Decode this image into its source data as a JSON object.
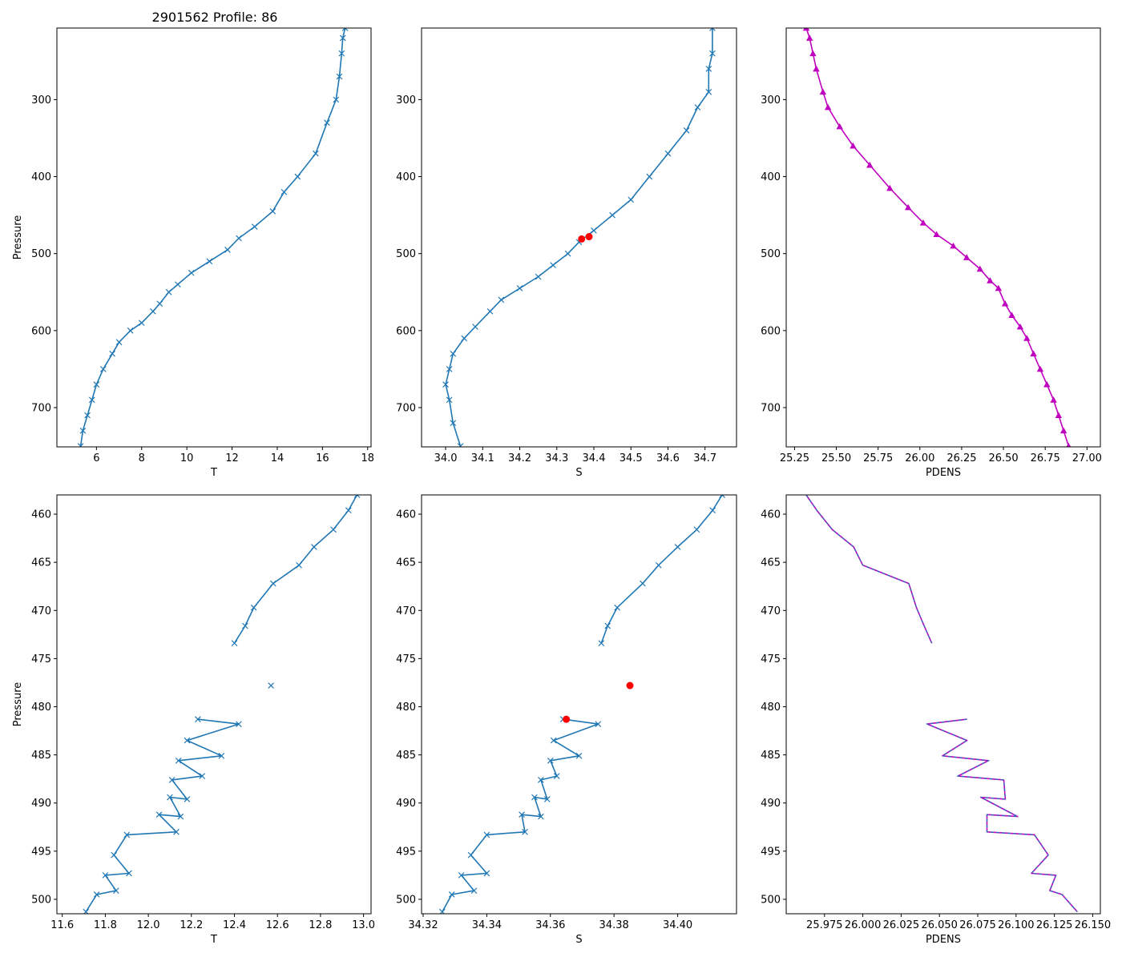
{
  "figure_title": "2901562 Profile: 86",
  "colors": {
    "line": "#1f77b4",
    "pdens": "#bf00bf",
    "pdens_dash": "#1f77b4",
    "qc_flag": "#ff0000",
    "axis": "#000000"
  },
  "chart_data": [
    {
      "id": "top-T",
      "type": "line",
      "xlabel": "T",
      "ylabel": "Pressure",
      "title": "2901562 Profile: 86",
      "xlim": [
        4.25,
        18.15
      ],
      "ylim": [
        751,
        207
      ],
      "y_inverted": true,
      "xticks": [
        "6",
        "8",
        "10",
        "12",
        "14",
        "16",
        "18"
      ],
      "xtick_values": [
        6,
        8,
        10,
        12,
        14,
        16,
        18
      ],
      "yticks": [
        "300",
        "400",
        "500",
        "600",
        "700"
      ],
      "ytick_values": [
        300,
        400,
        500,
        600,
        700
      ],
      "marker": "x",
      "series_color": "line",
      "series": [
        {
          "name": "T",
          "x": [
            5.3,
            5.4,
            5.6,
            5.8,
            6.0,
            6.3,
            6.7,
            7.0,
            7.5,
            8.0,
            8.5,
            8.8,
            9.2,
            9.6,
            10.2,
            11.0,
            11.8,
            12.3,
            13.0,
            13.8,
            14.3,
            14.9,
            15.7,
            16.2,
            16.6,
            16.75,
            16.85,
            16.9,
            17.0
          ],
          "y": [
            750,
            730,
            710,
            690,
            670,
            650,
            630,
            615,
            600,
            590,
            575,
            565,
            550,
            540,
            525,
            510,
            495,
            480,
            465,
            445,
            420,
            400,
            370,
            330,
            300,
            270,
            240,
            220,
            207
          ]
        }
      ]
    },
    {
      "id": "top-S",
      "type": "line",
      "xlabel": "S",
      "ylabel": "",
      "xlim": [
        33.935,
        34.785
      ],
      "ylim": [
        751,
        207
      ],
      "y_inverted": true,
      "xticks": [
        "34.0",
        "34.1",
        "34.2",
        "34.3",
        "34.4",
        "34.5",
        "34.6",
        "34.7"
      ],
      "xtick_values": [
        34.0,
        34.1,
        34.2,
        34.3,
        34.4,
        34.5,
        34.6,
        34.7
      ],
      "yticks": [
        "300",
        "400",
        "500",
        "600",
        "700"
      ],
      "ytick_values": [
        300,
        400,
        500,
        600,
        700
      ],
      "marker": "x",
      "series_color": "line",
      "series": [
        {
          "name": "S",
          "x": [
            34.04,
            34.02,
            34.01,
            34.0,
            34.01,
            34.02,
            34.05,
            34.08,
            34.12,
            34.15,
            34.2,
            34.25,
            34.29,
            34.33,
            34.36,
            34.4,
            34.45,
            34.5,
            34.55,
            34.6,
            34.65,
            34.68,
            34.71,
            34.71,
            34.72,
            34.72
          ],
          "y": [
            750,
            720,
            690,
            670,
            650,
            630,
            610,
            595,
            575,
            560,
            545,
            530,
            515,
            500,
            485,
            470,
            450,
            430,
            400,
            370,
            340,
            310,
            290,
            260,
            240,
            207
          ]
        }
      ],
      "flags": {
        "x": [
          34.367,
          34.387
        ],
        "y": [
          481,
          478
        ]
      }
    },
    {
      "id": "top-PDENS",
      "type": "line",
      "xlabel": "PDENS",
      "ylabel": "",
      "xlim": [
        25.2,
        27.08
      ],
      "ylim": [
        751,
        207
      ],
      "y_inverted": true,
      "xticks": [
        "25.25",
        "25.50",
        "25.75",
        "26.00",
        "26.25",
        "26.50",
        "26.75",
        "27.00"
      ],
      "xtick_values": [
        25.25,
        25.5,
        25.75,
        26.0,
        26.25,
        26.5,
        26.75,
        27.0
      ],
      "yticks": [
        "300",
        "400",
        "500",
        "600",
        "700"
      ],
      "ytick_values": [
        300,
        400,
        500,
        600,
        700
      ],
      "marker": "triangle",
      "series_color": "pdens",
      "series": [
        {
          "name": "PDENS",
          "x": [
            26.89,
            26.86,
            26.83,
            26.8,
            26.76,
            26.72,
            26.68,
            26.64,
            26.6,
            26.55,
            26.51,
            26.47,
            26.42,
            26.36,
            26.28,
            26.2,
            26.1,
            26.02,
            25.93,
            25.82,
            25.7,
            25.6,
            25.52,
            25.45,
            25.42,
            25.38,
            25.36,
            25.34,
            25.32
          ],
          "y": [
            750,
            730,
            710,
            690,
            670,
            650,
            630,
            610,
            595,
            580,
            565,
            545,
            535,
            520,
            505,
            490,
            475,
            460,
            440,
            415,
            385,
            360,
            335,
            310,
            290,
            260,
            240,
            220,
            207
          ]
        }
      ]
    },
    {
      "id": "bottom-T",
      "type": "line",
      "xlabel": "T",
      "ylabel": "Pressure",
      "xlim": [
        11.575,
        13.035
      ],
      "ylim": [
        501.5,
        458.0
      ],
      "y_inverted": true,
      "xticks": [
        "11.6",
        "11.8",
        "12.0",
        "12.2",
        "12.4",
        "12.6",
        "12.8",
        "13.0"
      ],
      "xtick_values": [
        11.6,
        11.8,
        12.0,
        12.2,
        12.4,
        12.6,
        12.8,
        13.0
      ],
      "yticks": [
        "460",
        "465",
        "470",
        "475",
        "480",
        "485",
        "490",
        "495",
        "500"
      ],
      "ytick_values": [
        460,
        465,
        470,
        475,
        480,
        485,
        490,
        495,
        500
      ],
      "marker": "x",
      "series_color": "line",
      "segments": [
        {
          "x": [
            12.97,
            12.93,
            12.86,
            12.77,
            12.7,
            12.58,
            12.49,
            12.45,
            12.4
          ],
          "y": [
            458.0,
            459.6,
            461.6,
            463.4,
            465.3,
            467.2,
            469.7,
            471.6,
            473.4
          ]
        },
        {
          "x": [
            12.57
          ],
          "y": [
            477.8
          ]
        },
        {
          "x": [
            12.23,
            12.42,
            12.18,
            12.34,
            12.14,
            12.25,
            12.11,
            12.18,
            12.1,
            12.15,
            12.05,
            12.13,
            11.9,
            11.84,
            11.91,
            11.8,
            11.85,
            11.76,
            11.71
          ],
          "y": [
            481.3,
            481.8,
            483.5,
            485.1,
            485.6,
            487.2,
            487.6,
            489.6,
            489.4,
            491.4,
            491.2,
            493.0,
            493.3,
            495.4,
            497.3,
            497.5,
            499.1,
            499.5,
            501.3
          ]
        }
      ]
    },
    {
      "id": "bottom-S",
      "type": "line",
      "xlabel": "S",
      "ylabel": "",
      "xlim": [
        34.3195,
        34.4185
      ],
      "ylim": [
        501.5,
        458.0
      ],
      "y_inverted": true,
      "xticks": [
        "34.32",
        "34.34",
        "34.36",
        "34.38",
        "34.40"
      ],
      "xtick_values": [
        34.32,
        34.34,
        34.36,
        34.38,
        34.4
      ],
      "yticks": [
        "460",
        "465",
        "470",
        "475",
        "480",
        "485",
        "490",
        "495",
        "500"
      ],
      "ytick_values": [
        460,
        465,
        470,
        475,
        480,
        485,
        490,
        495,
        500
      ],
      "marker": "x",
      "series_color": "line",
      "segments": [
        {
          "x": [
            34.414,
            34.411,
            34.406,
            34.4,
            34.394,
            34.389,
            34.381,
            34.378,
            34.376
          ],
          "y": [
            458.0,
            459.6,
            461.6,
            463.4,
            465.3,
            467.2,
            469.7,
            471.6,
            473.4
          ]
        },
        {
          "x": [
            34.364,
            34.375,
            34.361,
            34.369,
            34.36,
            34.362,
            34.357,
            34.359,
            34.355,
            34.357,
            34.351,
            34.352,
            34.34,
            34.335,
            34.34,
            34.332,
            34.336,
            34.329,
            34.326
          ],
          "y": [
            481.3,
            481.8,
            483.5,
            485.1,
            485.6,
            487.2,
            487.6,
            489.6,
            489.4,
            491.4,
            491.2,
            493.0,
            493.3,
            495.4,
            497.3,
            497.5,
            499.1,
            499.5,
            501.3
          ]
        }
      ],
      "flags": {
        "x": [
          34.385,
          34.365
        ],
        "y": [
          477.8,
          481.3
        ]
      }
    },
    {
      "id": "bottom-PDENS",
      "type": "line",
      "xlabel": "PDENS",
      "ylabel": "",
      "xlim": [
        25.95,
        26.155
      ],
      "ylim": [
        501.5,
        458.0
      ],
      "y_inverted": true,
      "xticks": [
        "25.975",
        "26.000",
        "26.025",
        "26.050",
        "26.075",
        "26.100",
        "26.125",
        "26.150"
      ],
      "xtick_values": [
        25.975,
        26.0,
        26.025,
        26.05,
        26.075,
        26.1,
        26.125,
        26.15
      ],
      "yticks": [
        "460",
        "465",
        "470",
        "475",
        "480",
        "485",
        "490",
        "495",
        "500"
      ],
      "ytick_values": [
        460,
        465,
        470,
        475,
        480,
        485,
        490,
        495,
        500
      ],
      "marker": "none",
      "series_color": "pdens",
      "dash_overlay": true,
      "segments": [
        {
          "x": [
            25.963,
            25.97,
            25.98,
            25.994,
            26.0,
            26.03,
            26.035,
            26.04,
            26.045
          ],
          "y": [
            458.0,
            459.6,
            461.6,
            463.4,
            465.3,
            467.2,
            469.7,
            471.6,
            473.4
          ]
        },
        {
          "x": [
            26.068,
            26.042,
            26.068,
            26.052,
            26.082,
            26.062,
            26.092,
            26.093,
            26.077,
            26.101,
            26.081,
            26.081,
            26.112,
            26.121,
            26.11,
            26.126,
            26.122,
            26.13,
            26.14
          ],
          "y": [
            481.3,
            481.8,
            483.5,
            485.1,
            485.6,
            487.2,
            487.6,
            489.6,
            489.4,
            491.4,
            491.2,
            493.0,
            493.3,
            495.4,
            497.3,
            497.5,
            499.1,
            499.5,
            501.3
          ]
        }
      ]
    }
  ]
}
